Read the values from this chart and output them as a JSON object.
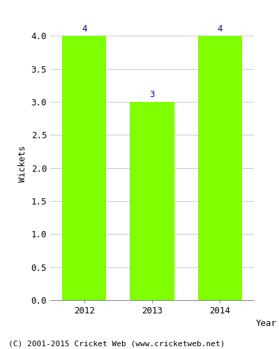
{
  "categories": [
    "2012",
    "2013",
    "2014"
  ],
  "values": [
    4,
    3,
    4
  ],
  "bar_color": "#7fff00",
  "bar_edge_color": "#7fff00",
  "xlabel": "Year",
  "ylabel": "Wickets",
  "ylim_max": 4.0,
  "yticks": [
    0.0,
    0.5,
    1.0,
    1.5,
    2.0,
    2.5,
    3.0,
    3.5,
    4.0
  ],
  "annotation_color": "#0000bb",
  "annotation_fontsize": 9,
  "axis_label_fontsize": 9,
  "tick_fontsize": 9,
  "footer_text": "(C) 2001-2015 Cricket Web (www.cricketweb.net)",
  "footer_fontsize": 8,
  "background_color": "#ffffff",
  "grid_color": "#c8c8c8",
  "bar_width": 0.65
}
